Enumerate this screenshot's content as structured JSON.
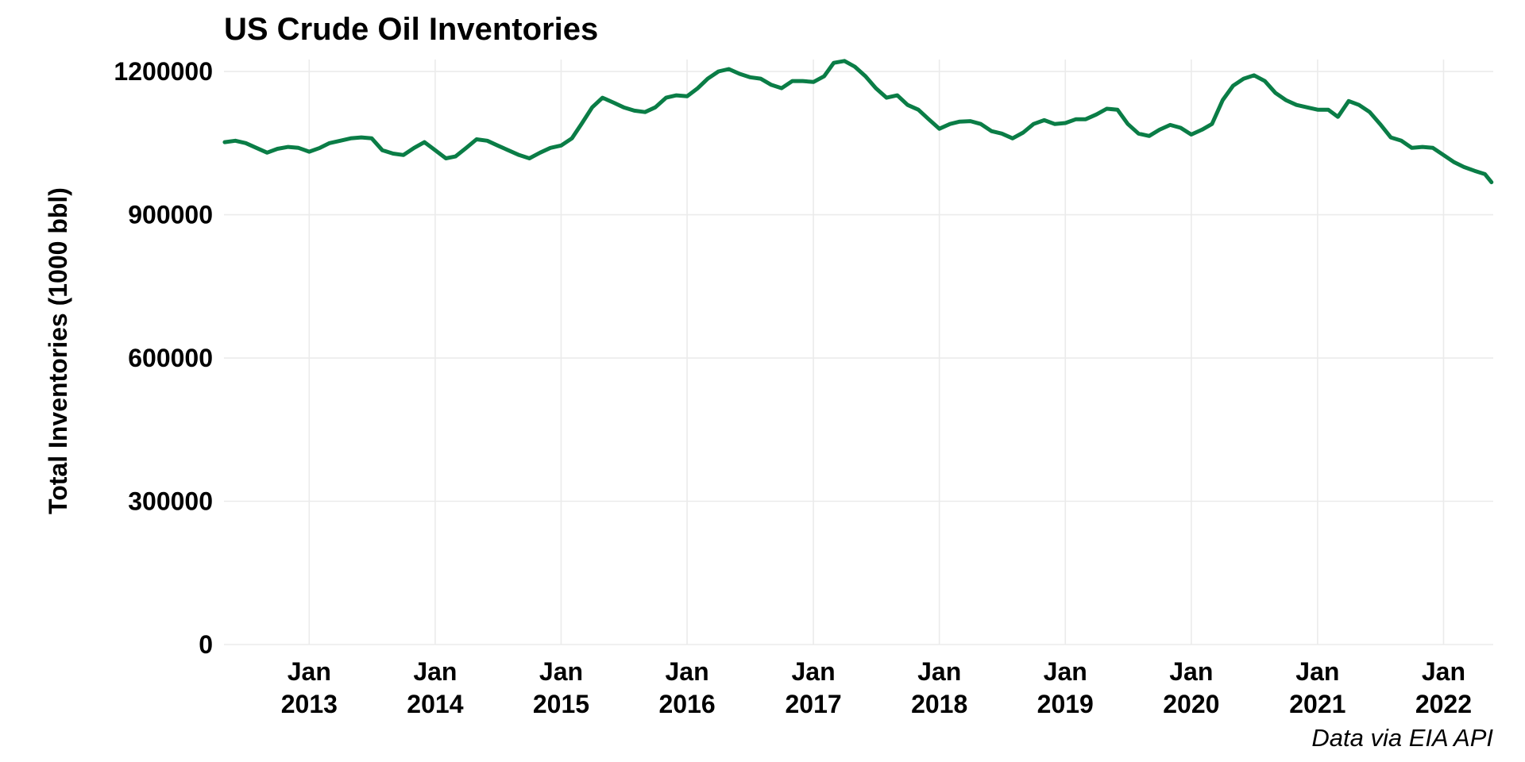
{
  "chart_data": {
    "type": "line",
    "title": "US Crude Oil Inventories",
    "ylabel": "Total Inventories (1000 bbl)",
    "xlabel": "",
    "caption": "Data via EIA API",
    "ylim": [
      0,
      1225000
    ],
    "xlim": [
      "2012-04-29",
      "2022-05-25"
    ],
    "y_ticks": [
      0,
      300000,
      600000,
      900000,
      1200000
    ],
    "y_tick_labels": [
      "0",
      "300000",
      "600000",
      "900000",
      "1200000"
    ],
    "x_ticks": [
      "2013-01-01",
      "2014-01-01",
      "2015-01-01",
      "2016-01-01",
      "2017-01-01",
      "2018-01-01",
      "2019-01-01",
      "2020-01-01",
      "2021-01-01",
      "2022-01-01"
    ],
    "x_tick_labels": [
      [
        "Jan",
        "2013"
      ],
      [
        "Jan",
        "2014"
      ],
      [
        "Jan",
        "2015"
      ],
      [
        "Jan",
        "2016"
      ],
      [
        "Jan",
        "2017"
      ],
      [
        "Jan",
        "2018"
      ],
      [
        "Jan",
        "2019"
      ],
      [
        "Jan",
        "2020"
      ],
      [
        "Jan",
        "2021"
      ],
      [
        "Jan",
        "2022"
      ]
    ],
    "grid": true,
    "legend": "none",
    "color": "#0a7d46",
    "series": [
      {
        "x": [
          "2012-05-01",
          "2012-06-01",
          "2012-07-01",
          "2012-08-01",
          "2012-09-01",
          "2012-10-01",
          "2012-11-01",
          "2012-12-01",
          "2013-01-01",
          "2013-02-01",
          "2013-03-01",
          "2013-04-01",
          "2013-05-01",
          "2013-06-01",
          "2013-07-01",
          "2013-08-01",
          "2013-09-01",
          "2013-10-01",
          "2013-11-01",
          "2013-12-01",
          "2014-01-01",
          "2014-02-01",
          "2014-03-01",
          "2014-04-01",
          "2014-05-01",
          "2014-06-01",
          "2014-07-01",
          "2014-08-01",
          "2014-09-01",
          "2014-10-01",
          "2014-11-01",
          "2014-12-01",
          "2015-01-01",
          "2015-02-01",
          "2015-03-01",
          "2015-04-01",
          "2015-05-01",
          "2015-06-01",
          "2015-07-01",
          "2015-08-01",
          "2015-09-01",
          "2015-10-01",
          "2015-11-01",
          "2015-12-01",
          "2016-01-01",
          "2016-02-01",
          "2016-03-01",
          "2016-04-01",
          "2016-05-01",
          "2016-06-01",
          "2016-07-01",
          "2016-08-01",
          "2016-09-01",
          "2016-10-01",
          "2016-11-01",
          "2016-12-01",
          "2017-01-01",
          "2017-02-01",
          "2017-03-01",
          "2017-04-01",
          "2017-05-01",
          "2017-06-01",
          "2017-07-01",
          "2017-08-01",
          "2017-09-01",
          "2017-10-01",
          "2017-11-01",
          "2017-12-01",
          "2018-01-01",
          "2018-02-01",
          "2018-03-01",
          "2018-04-01",
          "2018-05-01",
          "2018-06-01",
          "2018-07-01",
          "2018-08-01",
          "2018-09-01",
          "2018-10-01",
          "2018-11-01",
          "2018-12-01",
          "2019-01-01",
          "2019-02-01",
          "2019-03-01",
          "2019-04-01",
          "2019-05-01",
          "2019-06-01",
          "2019-07-01",
          "2019-08-01",
          "2019-09-01",
          "2019-10-01",
          "2019-11-01",
          "2019-12-01",
          "2020-01-01",
          "2020-02-01",
          "2020-03-01",
          "2020-04-01",
          "2020-05-01",
          "2020-06-01",
          "2020-07-01",
          "2020-08-01",
          "2020-09-01",
          "2020-10-01",
          "2020-11-01",
          "2020-12-01",
          "2021-01-01",
          "2021-02-01",
          "2021-03-01",
          "2021-04-01",
          "2021-05-01",
          "2021-06-01",
          "2021-07-01",
          "2021-08-01",
          "2021-09-01",
          "2021-10-01",
          "2021-11-01",
          "2021-12-01",
          "2022-01-01",
          "2022-02-01",
          "2022-03-01",
          "2022-04-01",
          "2022-05-01",
          "2022-05-20"
        ],
        "values": [
          1052000,
          1055000,
          1050000,
          1040000,
          1030000,
          1038000,
          1042000,
          1040000,
          1032000,
          1040000,
          1050000,
          1055000,
          1060000,
          1062000,
          1060000,
          1035000,
          1028000,
          1025000,
          1040000,
          1052000,
          1035000,
          1018000,
          1022000,
          1040000,
          1058000,
          1055000,
          1045000,
          1035000,
          1025000,
          1018000,
          1030000,
          1040000,
          1045000,
          1060000,
          1090000,
          1125000,
          1145000,
          1135000,
          1125000,
          1118000,
          1115000,
          1125000,
          1145000,
          1150000,
          1148000,
          1165000,
          1185000,
          1200000,
          1205000,
          1195000,
          1188000,
          1185000,
          1172000,
          1165000,
          1180000,
          1180000,
          1178000,
          1190000,
          1218000,
          1222000,
          1210000,
          1190000,
          1165000,
          1145000,
          1150000,
          1130000,
          1120000,
          1100000,
          1080000,
          1090000,
          1095000,
          1096000,
          1090000,
          1075000,
          1070000,
          1060000,
          1072000,
          1090000,
          1098000,
          1090000,
          1092000,
          1100000,
          1100000,
          1110000,
          1122000,
          1120000,
          1090000,
          1070000,
          1065000,
          1078000,
          1088000,
          1082000,
          1068000,
          1078000,
          1090000,
          1140000,
          1170000,
          1185000,
          1192000,
          1180000,
          1155000,
          1140000,
          1130000,
          1125000,
          1120000,
          1120000,
          1105000,
          1138000,
          1130000,
          1115000,
          1090000,
          1062000,
          1055000,
          1040000,
          1042000,
          1040000,
          1025000,
          1010000,
          1000000,
          992000,
          985000,
          968000
        ]
      }
    ]
  }
}
